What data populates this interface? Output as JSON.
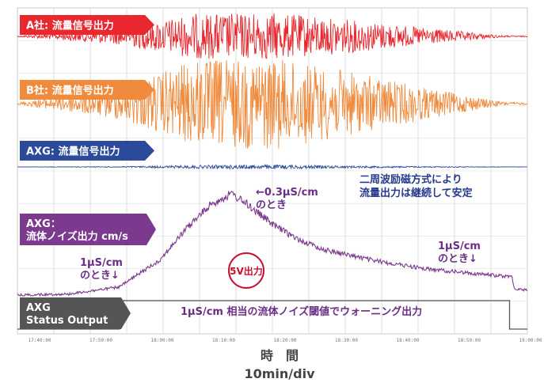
{
  "chart_data": {
    "type": "line",
    "title": "",
    "xlabel": "時　間",
    "xunit": "10min/div",
    "x_tick_labels": [
      "17:40:00",
      "17:50:00",
      "18:00:00",
      "18:10:00",
      "18:20:00",
      "18:30:00",
      "18:40:00",
      "18:50:00",
      "19:00:00"
    ],
    "grid": true,
    "series": [
      {
        "name": "A社: 流量信号出力",
        "color": "#e8282e",
        "envelope_x": [
          0,
          0.2,
          0.35,
          0.5,
          0.65,
          0.8,
          0.95,
          1.0
        ],
        "amplitude": [
          0.02,
          0.35,
          0.95,
          1.0,
          0.7,
          0.35,
          0.04,
          0.02
        ]
      },
      {
        "name": "B社: 流量信号出力",
        "color": "#f08a3c",
        "envelope_x": [
          0,
          0.2,
          0.35,
          0.5,
          0.65,
          0.8,
          0.95,
          1.0
        ],
        "amplitude": [
          0.02,
          0.35,
          0.95,
          1.0,
          0.7,
          0.35,
          0.04,
          0.02
        ]
      },
      {
        "name": "AXG: 流量信号出力",
        "color": "#2b4a9a",
        "envelope_x": [
          0,
          0.2,
          0.35,
          0.5,
          0.65,
          0.8,
          0.95,
          1.0
        ],
        "amplitude": [
          0.01,
          0.04,
          0.15,
          0.2,
          0.1,
          0.05,
          0.02,
          0.01
        ]
      },
      {
        "name": "AXG：\n流体ノイズ出力 cm/s",
        "color": "#7b3a8e",
        "x": [
          0,
          0.1,
          0.2,
          0.28,
          0.33,
          0.38,
          0.42,
          0.45,
          0.5,
          0.55,
          0.6,
          0.7,
          0.8,
          0.9,
          0.97,
          0.975,
          1.0
        ],
        "y": [
          0.0,
          0.01,
          0.08,
          0.35,
          0.65,
          0.9,
          1.0,
          0.9,
          0.7,
          0.55,
          0.45,
          0.34,
          0.26,
          0.21,
          0.18,
          0.06,
          0.05
        ]
      },
      {
        "name": "AXG\nStatus Output",
        "color": "#555555",
        "x": [
          0,
          0.2,
          0.2001,
          0.965,
          0.9651,
          1.0
        ],
        "y": [
          0,
          0,
          1,
          1,
          0,
          0
        ]
      }
    ],
    "annotations": [
      {
        "text": "←0.3µS/cm\nのとき"
      },
      {
        "text": "二周波励磁方式により\n流量出力は継続して安定"
      },
      {
        "text": "1µS/cm\nのとき↓"
      },
      {
        "text": "1µS/cm\nのとき↓"
      },
      {
        "text": "5V出力"
      },
      {
        "text": "1µS/cm 相当の流体ノイズ閾値でウォーニング出力"
      }
    ]
  }
}
